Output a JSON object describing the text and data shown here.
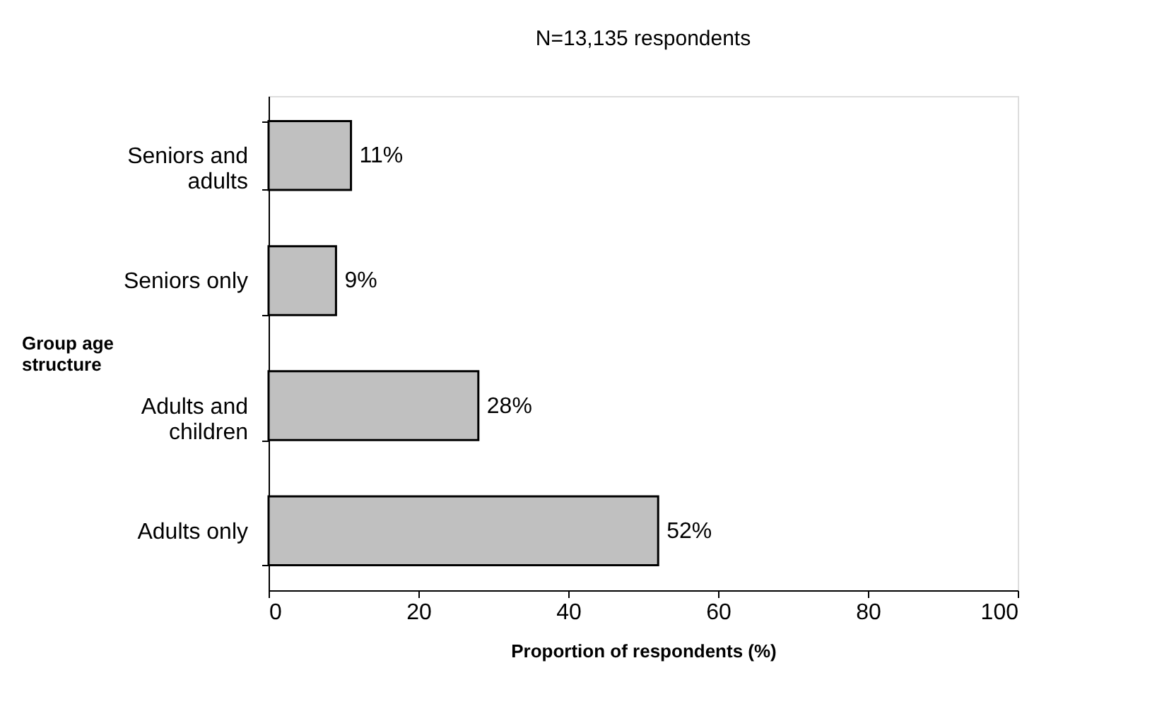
{
  "chart_data": {
    "type": "bar",
    "orientation": "horizontal",
    "title": "N=13,135 respondents",
    "categories": [
      "Seniors and adults",
      "Seniors only",
      "Adults and children",
      "Adults only"
    ],
    "values": [
      11,
      9,
      28,
      52
    ],
    "value_labels": [
      "11%",
      "9%",
      "28%",
      "52%"
    ],
    "color": "#c0c0c0",
    "xlim": [
      0,
      100
    ],
    "xticks": [
      0,
      20,
      40,
      60,
      80,
      100
    ],
    "xlabel": "Proportion of respondents (%)",
    "ylabel": "Group age structure",
    "grid": false
  }
}
